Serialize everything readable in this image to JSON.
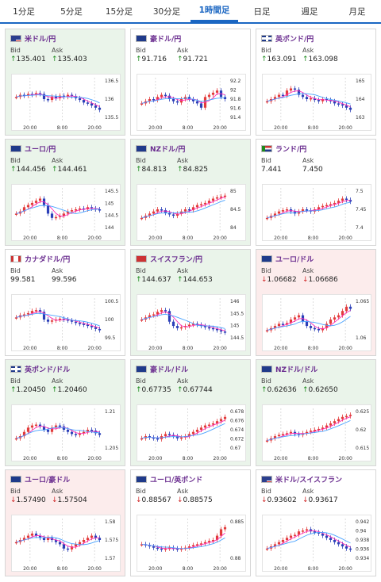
{
  "tabs": [
    {
      "label": "1分足",
      "active": false
    },
    {
      "label": "5分足",
      "active": false
    },
    {
      "label": "15分足",
      "active": false
    },
    {
      "label": "30分足",
      "active": false
    },
    {
      "label": "1時間足",
      "active": true
    },
    {
      "label": "日足",
      "active": false
    },
    {
      "label": "週足",
      "active": false
    },
    {
      "label": "月足",
      "active": false
    }
  ],
  "labels": {
    "bid": "Bid",
    "ask": "Ask"
  },
  "colors": {
    "up": "#1d8a1d",
    "down": "#d12a2a",
    "pair": "#6a2d8f",
    "accent": "#1a66c2"
  },
  "cards": [
    {
      "pair": "米ドル/円",
      "flag": "us-flag-icon",
      "dir": "up",
      "bg": "up",
      "bid": "135.401",
      "ask": "135.403",
      "y_ticks": [
        "136.5",
        "136",
        "135.5"
      ],
      "x_ticks": [
        "20:00",
        "8:00",
        "20:00"
      ],
      "series": [
        0.55,
        0.6,
        0.58,
        0.62,
        0.6,
        0.64,
        0.62,
        0.5,
        0.48,
        0.56,
        0.52,
        0.58,
        0.55,
        0.6,
        0.57,
        0.52,
        0.48,
        0.42,
        0.4,
        0.35,
        0.3,
        0.25
      ]
    },
    {
      "pair": "豪ドル/円",
      "flag": "au-flag-icon",
      "dir": "up",
      "bg": "neutral",
      "bid": "91.716",
      "ask": "91.721",
      "y_ticks": [
        "92.2",
        "92",
        "91.8",
        "91.6",
        "91.4"
      ],
      "x_ticks": [
        "20:00",
        "8:00",
        "20:00"
      ],
      "series": [
        0.4,
        0.45,
        0.5,
        0.48,
        0.55,
        0.6,
        0.58,
        0.5,
        0.45,
        0.42,
        0.5,
        0.55,
        0.5,
        0.45,
        0.4,
        0.3,
        0.55,
        0.6,
        0.65,
        0.7,
        0.55,
        0.5
      ]
    },
    {
      "pair": "英ポンド/円",
      "flag": "uk-flag-icon",
      "dir": "up",
      "bg": "neutral",
      "bid": "163.091",
      "ask": "163.098",
      "y_ticks": [
        "165",
        "164",
        "163"
      ],
      "x_ticks": [
        "20:00",
        "8:00",
        "20:00"
      ],
      "series": [
        0.45,
        0.5,
        0.55,
        0.6,
        0.58,
        0.7,
        0.75,
        0.72,
        0.6,
        0.55,
        0.5,
        0.52,
        0.48,
        0.45,
        0.5,
        0.48,
        0.45,
        0.4,
        0.38,
        0.35,
        0.3,
        0.25
      ]
    },
    {
      "pair": "ユーロ/円",
      "flag": "eu-flag-icon",
      "dir": "up",
      "bg": "up",
      "bid": "144.456",
      "ask": "144.461",
      "y_ticks": [
        "145.5",
        "145",
        "144.5",
        "144"
      ],
      "x_ticks": [
        "20:00",
        "8:00",
        "20:00"
      ],
      "series": [
        0.4,
        0.45,
        0.55,
        0.6,
        0.65,
        0.7,
        0.75,
        0.6,
        0.4,
        0.3,
        0.32,
        0.35,
        0.4,
        0.45,
        0.48,
        0.5,
        0.52,
        0.5,
        0.55,
        0.52,
        0.5,
        0.48
      ]
    },
    {
      "pair": "NZドル/円",
      "flag": "nz-flag-icon",
      "dir": "up",
      "bg": "up",
      "bid": "84.813",
      "ask": "84.825",
      "y_ticks": [
        "85",
        "84.5",
        "84"
      ],
      "x_ticks": [
        "20:00",
        "8:00",
        "20:00"
      ],
      "series": [
        0.3,
        0.35,
        0.4,
        0.45,
        0.5,
        0.48,
        0.42,
        0.38,
        0.35,
        0.4,
        0.45,
        0.5,
        0.48,
        0.55,
        0.6,
        0.62,
        0.65,
        0.7,
        0.75,
        0.78,
        0.8,
        0.82
      ]
    },
    {
      "pair": "ランド/円",
      "flag": "za-flag-icon",
      "dir": "",
      "bg": "neutral",
      "bid": "7.441",
      "ask": "7.450",
      "y_ticks": [
        "7.5",
        "7.45",
        "7.4"
      ],
      "x_ticks": [
        "20:00",
        "8:00",
        "20:00"
      ],
      "series": [
        0.3,
        0.35,
        0.4,
        0.45,
        0.48,
        0.5,
        0.45,
        0.4,
        0.45,
        0.5,
        0.48,
        0.45,
        0.5,
        0.55,
        0.58,
        0.6,
        0.62,
        0.65,
        0.7,
        0.75,
        0.72,
        0.68
      ]
    },
    {
      "pair": "カナダドル/円",
      "flag": "ca-flag-icon",
      "dir": "",
      "bg": "neutral",
      "bid": "99.581",
      "ask": "99.596",
      "y_ticks": [
        "100.5",
        "100",
        "99.5"
      ],
      "x_ticks": [
        "20:00",
        "8:00",
        "20:00"
      ],
      "series": [
        0.55,
        0.6,
        0.62,
        0.65,
        0.7,
        0.72,
        0.68,
        0.5,
        0.45,
        0.48,
        0.5,
        0.52,
        0.5,
        0.48,
        0.45,
        0.42,
        0.4,
        0.38,
        0.35,
        0.32,
        0.28,
        0.25
      ]
    },
    {
      "pair": "スイスフラン/円",
      "flag": "ch-flag-icon",
      "dir": "up",
      "bg": "up",
      "bid": "144.637",
      "ask": "144.653",
      "y_ticks": [
        "146",
        "145.5",
        "145",
        "144.5"
      ],
      "x_ticks": [
        "20:00",
        "8:00",
        "20:00"
      ],
      "series": [
        0.5,
        0.55,
        0.6,
        0.62,
        0.68,
        0.72,
        0.7,
        0.45,
        0.35,
        0.3,
        0.32,
        0.35,
        0.38,
        0.4,
        0.38,
        0.35,
        0.32,
        0.3,
        0.28,
        0.25,
        0.22,
        0.2
      ]
    },
    {
      "pair": "ユーロ/ドル",
      "flag": "eu-flag-icon",
      "dir": "down",
      "bg": "down",
      "bid": "1.06682",
      "ask": "1.06686",
      "y_ticks": [
        "1.065",
        "1.06"
      ],
      "x_ticks": [
        "20:00",
        "8:00",
        "20:00"
      ],
      "series": [
        0.25,
        0.3,
        0.35,
        0.4,
        0.38,
        0.42,
        0.5,
        0.55,
        0.6,
        0.45,
        0.35,
        0.3,
        0.28,
        0.25,
        0.3,
        0.4,
        0.5,
        0.55,
        0.6,
        0.7,
        0.8,
        0.75
      ]
    },
    {
      "pair": "英ポンド/ドル",
      "flag": "uk-flag-icon",
      "dir": "up",
      "bg": "up",
      "bid": "1.20450",
      "ask": "1.20460",
      "y_ticks": [
        "1.21",
        "1.205"
      ],
      "x_ticks": [
        "20:00",
        "8:00",
        "20:00"
      ],
      "series": [
        0.3,
        0.35,
        0.45,
        0.55,
        0.6,
        0.62,
        0.58,
        0.5,
        0.45,
        0.55,
        0.6,
        0.58,
        0.5,
        0.45,
        0.4,
        0.38,
        0.42,
        0.45,
        0.5,
        0.48,
        0.42,
        0.38
      ]
    },
    {
      "pair": "豪ドル/ドル",
      "flag": "au-flag-icon",
      "dir": "up",
      "bg": "up",
      "bid": "0.67735",
      "ask": "0.67744",
      "y_ticks": [
        "0.678",
        "0.676",
        "0.674",
        "0.672",
        "0.67"
      ],
      "x_ticks": [
        "20:00",
        "8:00",
        "20:00"
      ],
      "series": [
        0.3,
        0.35,
        0.32,
        0.3,
        0.28,
        0.35,
        0.4,
        0.38,
        0.35,
        0.3,
        0.32,
        0.35,
        0.4,
        0.45,
        0.5,
        0.55,
        0.6,
        0.62,
        0.65,
        0.7,
        0.75,
        0.8
      ]
    },
    {
      "pair": "NZドル/ドル",
      "flag": "nz-flag-icon",
      "dir": "up",
      "bg": "up",
      "bid": "0.62636",
      "ask": "0.62650",
      "y_ticks": [
        "0.625",
        "0.62",
        "0.615"
      ],
      "x_ticks": [
        "20:00",
        "8:00",
        "20:00"
      ],
      "series": [
        0.25,
        0.3,
        0.35,
        0.38,
        0.4,
        0.42,
        0.45,
        0.4,
        0.38,
        0.42,
        0.45,
        0.48,
        0.5,
        0.52,
        0.55,
        0.6,
        0.65,
        0.7,
        0.75,
        0.8,
        0.82,
        0.85
      ]
    },
    {
      "pair": "ユーロ/豪ドル",
      "flag": "eu-flag-icon",
      "dir": "down",
      "bg": "down",
      "bid": "1.57490",
      "ask": "1.57504",
      "y_ticks": [
        "1.58",
        "1.575",
        "1.57"
      ],
      "x_ticks": [
        "20:00",
        "8:00",
        "20:00"
      ],
      "series": [
        0.45,
        0.5,
        0.55,
        0.6,
        0.65,
        0.6,
        0.55,
        0.5,
        0.55,
        0.5,
        0.45,
        0.4,
        0.3,
        0.28,
        0.35,
        0.4,
        0.45,
        0.5,
        0.55,
        0.6,
        0.55,
        0.5
      ]
    },
    {
      "pair": "ユーロ/英ポンド",
      "flag": "eu-flag-icon",
      "dir": "down",
      "bg": "neutral",
      "bid": "0.88567",
      "ask": "0.88575",
      "y_ticks": [
        "0.885",
        "0.88"
      ],
      "x_ticks": [
        "20:00",
        "8:00",
        "20:00"
      ],
      "series": [
        0.4,
        0.38,
        0.35,
        0.32,
        0.3,
        0.28,
        0.3,
        0.32,
        0.3,
        0.28,
        0.3,
        0.32,
        0.35,
        0.38,
        0.4,
        0.42,
        0.45,
        0.48,
        0.5,
        0.6,
        0.75,
        0.8
      ]
    },
    {
      "pair": "米ドル/スイスフラン",
      "flag": "us-flag-icon",
      "dir": "down",
      "bg": "neutral",
      "bid": "0.93602",
      "ask": "0.93617",
      "y_ticks": [
        "0.942",
        "0.94",
        "0.938",
        "0.936",
        "0.934"
      ],
      "x_ticks": [
        "20:00",
        "8:00",
        "20:00"
      ],
      "series": [
        0.3,
        0.35,
        0.4,
        0.45,
        0.5,
        0.55,
        0.6,
        0.62,
        0.7,
        0.72,
        0.75,
        0.7,
        0.68,
        0.65,
        0.6,
        0.55,
        0.5,
        0.45,
        0.4,
        0.35,
        0.3,
        0.28
      ]
    }
  ]
}
